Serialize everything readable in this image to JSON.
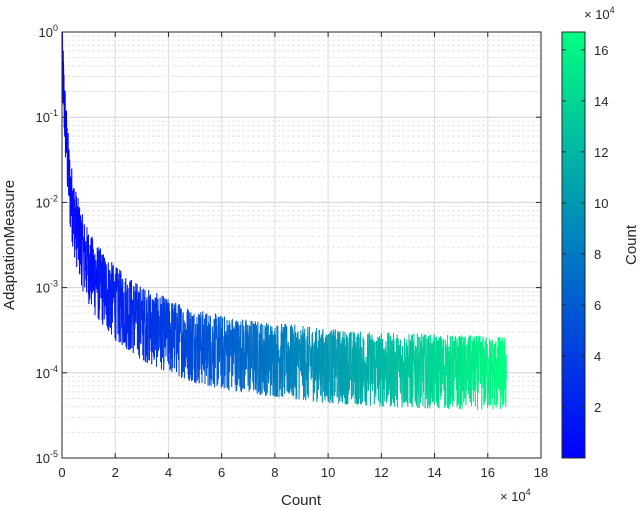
{
  "chart_data": {
    "type": "line",
    "xlabel": "Count",
    "ylabel": "AdaptationMeasure",
    "x_multiplier_text": "× 10",
    "x_multiplier_exp": "4",
    "xlim": [
      0,
      180000
    ],
    "ylim": [
      1e-05,
      1
    ],
    "yscale": "log",
    "grid": true,
    "minor_grid": true,
    "x_ticks": [
      "0",
      "2",
      "4",
      "6",
      "8",
      "10",
      "12",
      "14",
      "16",
      "18"
    ],
    "y_ticks": [
      {
        "base": "10",
        "exp": "0"
      },
      {
        "base": "10",
        "exp": "-1"
      },
      {
        "base": "10",
        "exp": "-2"
      },
      {
        "base": "10",
        "exp": "-3"
      },
      {
        "base": "10",
        "exp": "-4"
      },
      {
        "base": "10",
        "exp": "-5"
      }
    ],
    "series": [
      {
        "color_by": "x",
        "x_range": [
          1,
          167000
        ],
        "trend_points": [
          [
            1,
            0.8
          ],
          [
            300,
            0.3
          ],
          [
            1000,
            0.1
          ],
          [
            2000,
            0.03
          ],
          [
            3000,
            0.012
          ],
          [
            5000,
            0.005
          ],
          [
            8000,
            0.0022
          ],
          [
            12000,
            0.0012
          ],
          [
            20000,
            0.0006
          ],
          [
            30000,
            0.00035
          ],
          [
            40000,
            0.00025
          ],
          [
            50000,
            0.00019
          ],
          [
            60000,
            0.00016
          ],
          [
            80000,
            0.00013
          ],
          [
            100000,
            0.00011
          ],
          [
            120000,
            0.0001
          ],
          [
            140000,
            9.5e-05
          ],
          [
            167000,
            9e-05
          ]
        ],
        "spread_factor_range": [
          0.4,
          3.0
        ]
      }
    ],
    "colorbar": {
      "label": "Count",
      "range": [
        1,
        167000
      ],
      "colormap": "winter",
      "color_low": "#0000ff",
      "color_high": "#00ff80",
      "ticks": [
        "2",
        "4",
        "6",
        "8",
        "10",
        "12",
        "14",
        "16"
      ],
      "tick_values": [
        20000,
        40000,
        60000,
        80000,
        100000,
        120000,
        140000,
        160000
      ],
      "multiplier_text": "× 10",
      "multiplier_exp": "4"
    }
  }
}
